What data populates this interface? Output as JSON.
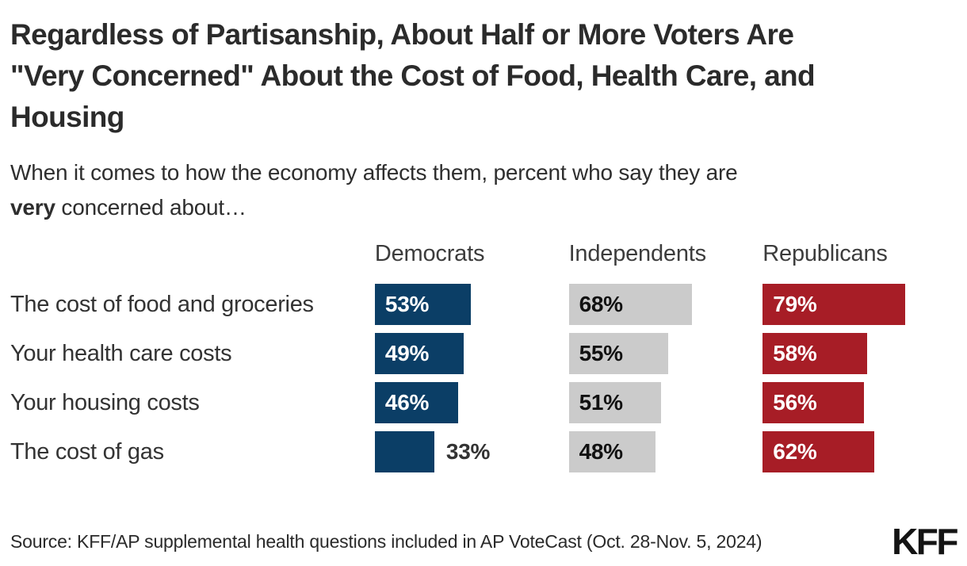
{
  "chart_data": {
    "type": "bar",
    "orientation": "horizontal",
    "title": "Regardless of Partisanship, About Half or More Voters Are \"Very Concerned\" About the Cost of Food, Health Care, and Housing",
    "title_lines": [
      "Regardless of Partisanship, About Half or More Voters Are",
      "\"Very Concerned\" About the Cost of Food, Health Care, and",
      "Housing"
    ],
    "subtitle": "When it comes to how the economy affects them, percent who say they are very concerned about…",
    "subtitle_parts": {
      "before_bold": "When it comes to how the economy affects them, percent who say they are",
      "bold": "very",
      "after_bold": " concerned about…"
    },
    "categories": [
      "The cost of food and groceries",
      "Your health care costs",
      "Your housing costs",
      "The cost of gas"
    ],
    "series": [
      {
        "name": "Democrats",
        "color": "#0B3E66",
        "label_color": "#ffffff",
        "values": [
          53,
          49,
          46,
          33
        ]
      },
      {
        "name": "Independents",
        "color": "#CBCBCB",
        "label_color": "#111111",
        "values": [
          68,
          55,
          51,
          48
        ]
      },
      {
        "name": "Republicans",
        "color": "#A71D26",
        "label_color": "#ffffff",
        "values": [
          79,
          58,
          56,
          62
        ]
      }
    ],
    "value_suffix": "%",
    "xlim": [
      0,
      100
    ],
    "outside_label_color": "#333333",
    "legend_position": "column-headers-top",
    "grid": false
  },
  "footer": {
    "source": "Source: KFF/AP supplemental health questions included in AP VoteCast (Oct. 28-Nov. 5, 2024)",
    "logo": "KFF"
  }
}
